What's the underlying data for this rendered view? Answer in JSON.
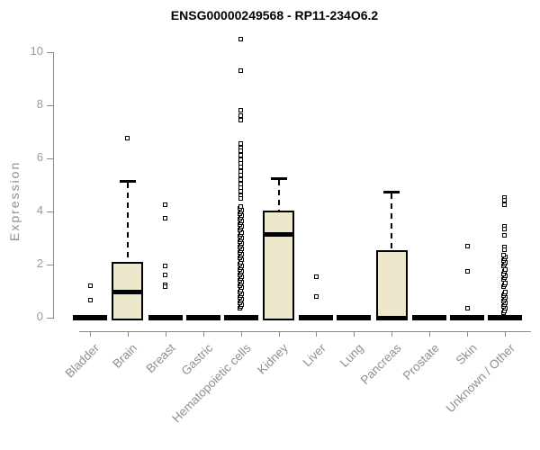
{
  "page": {
    "background": "#ffffff"
  },
  "chart_data": {
    "type": "boxplot",
    "title": "ENSG00000249568 - RP11-234O6.2",
    "ylabel": "Expression",
    "xlabel": "",
    "ylim": [
      0,
      10
    ],
    "yticks": [
      0,
      2,
      4,
      6,
      8,
      10
    ],
    "grid": false,
    "legend": null,
    "colors": {
      "box_fill": "#ede7cc",
      "box_stroke": "#000000",
      "axis": "#8a8a8a",
      "tick_text": "#9a9a9a",
      "title_text": "#000000"
    },
    "categories": [
      "Bladder",
      "Brain",
      "Breast",
      "Gastric",
      "Hematopoietic cells",
      "Kidney",
      "Liver",
      "Lung",
      "Pancreas",
      "Prostate",
      "Skin",
      "Unknown / Other"
    ],
    "boxes": [
      {
        "category": "Bladder",
        "q1": 0,
        "median": 0,
        "q3": 0,
        "whisker_low": 0,
        "whisker_high": 0,
        "outliers": [
          1.2,
          0.65
        ],
        "dense_outlier_ranges": []
      },
      {
        "category": "Brain",
        "q1": 0,
        "median": 1.0,
        "q3": 2.1,
        "whisker_low": 0,
        "whisker_high": 5.15,
        "outliers": [
          6.75
        ],
        "dense_outlier_ranges": []
      },
      {
        "category": "Breast",
        "q1": 0,
        "median": 0,
        "q3": 0,
        "whisker_low": 0,
        "whisker_high": 0,
        "outliers": [
          4.25,
          3.75,
          1.95,
          1.6,
          1.25,
          1.18
        ],
        "dense_outlier_ranges": []
      },
      {
        "category": "Gastric",
        "q1": 0,
        "median": 0,
        "q3": 0,
        "whisker_low": 0,
        "whisker_high": 0,
        "outliers": [],
        "dense_outlier_ranges": []
      },
      {
        "category": "Hematopoietic cells",
        "q1": 0,
        "median": 0,
        "q3": 0,
        "whisker_low": 0,
        "whisker_high": 0,
        "outliers": [
          10.5,
          9.3,
          7.8,
          7.62,
          7.45,
          6.55,
          6.4,
          6.28,
          6.12,
          5.95,
          5.8,
          5.68,
          5.52,
          5.38,
          5.22,
          5.05,
          4.9,
          4.75,
          4.6,
          4.5
        ],
        "dense_outlier_ranges": [
          [
            0.35,
            4.2
          ]
        ]
      },
      {
        "category": "Kidney",
        "q1": 0,
        "median": 3.15,
        "q3": 4.05,
        "whisker_low": 0,
        "whisker_high": 5.25,
        "outliers": [],
        "dense_outlier_ranges": []
      },
      {
        "category": "Liver",
        "q1": 0,
        "median": 0,
        "q3": 0,
        "whisker_low": 0,
        "whisker_high": 0,
        "outliers": [
          1.55,
          0.8
        ],
        "dense_outlier_ranges": []
      },
      {
        "category": "Lung",
        "q1": 0,
        "median": 0,
        "q3": 0,
        "whisker_low": 0,
        "whisker_high": 0,
        "outliers": [],
        "dense_outlier_ranges": []
      },
      {
        "category": "Pancreas",
        "q1": 0,
        "median": 0,
        "q3": 2.55,
        "whisker_low": 0,
        "whisker_high": 4.75,
        "outliers": [],
        "dense_outlier_ranges": []
      },
      {
        "category": "Prostate",
        "q1": 0,
        "median": 0,
        "q3": 0,
        "whisker_low": 0,
        "whisker_high": 0,
        "outliers": [],
        "dense_outlier_ranges": []
      },
      {
        "category": "Skin",
        "q1": 0,
        "median": 0,
        "q3": 0,
        "whisker_low": 0,
        "whisker_high": 0,
        "outliers": [
          2.7,
          1.75,
          0.35
        ],
        "dense_outlier_ranges": []
      },
      {
        "category": "Unknown / Other",
        "q1": 0,
        "median": 0,
        "q3": 0,
        "whisker_low": 0,
        "whisker_high": 0,
        "outliers": [
          4.52,
          4.42,
          4.25,
          3.45,
          3.33,
          3.1,
          2.67,
          2.55
        ],
        "dense_outlier_ranges": [
          [
            0.2,
            1.0
          ],
          [
            1.18,
            1.38
          ],
          [
            1.45,
            1.8
          ],
          [
            1.95,
            2.4
          ]
        ]
      }
    ]
  }
}
